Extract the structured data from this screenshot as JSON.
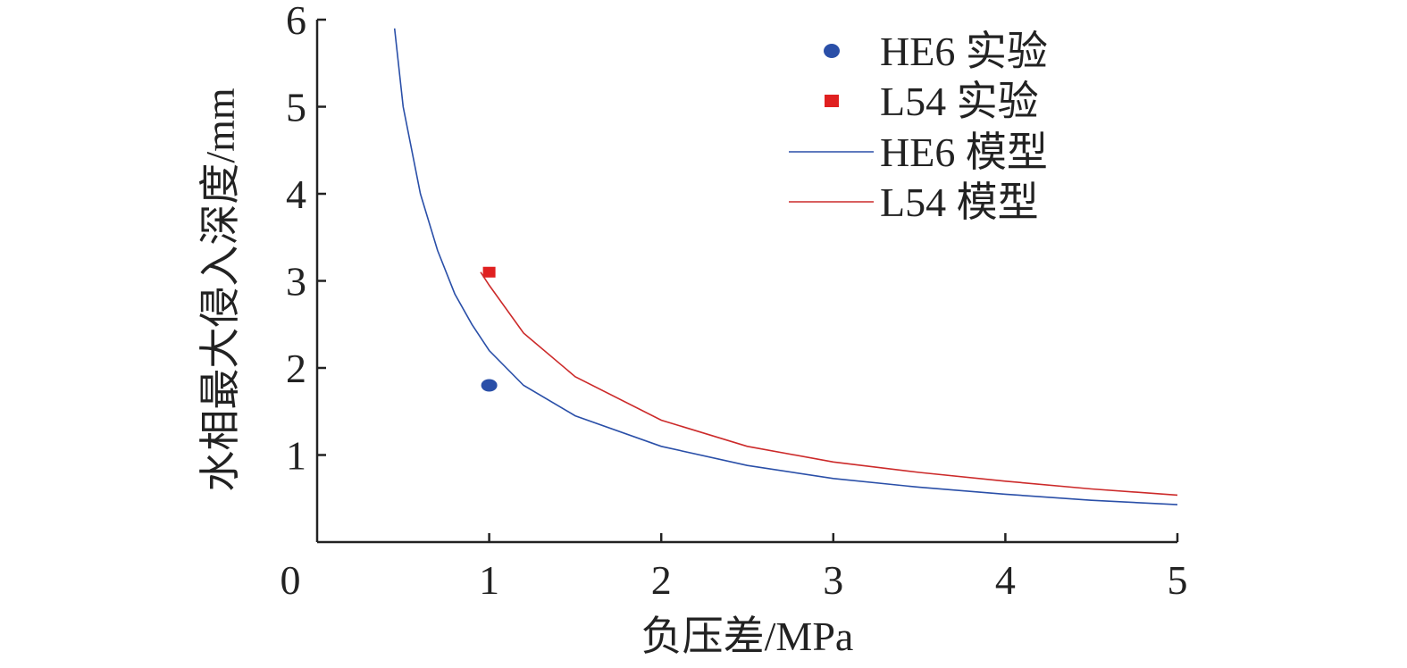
{
  "chart_data": {
    "type": "line",
    "xlabel": "负压差/MPa",
    "ylabel": "水相最大侵入深度/mm",
    "xlim": [
      0,
      5
    ],
    "ylim": [
      0,
      6
    ],
    "x_ticks": [
      "0",
      "1",
      "2",
      "3",
      "4",
      "5"
    ],
    "y_ticks": [
      "1",
      "2",
      "3",
      "4",
      "5",
      "6"
    ],
    "grid": false,
    "legend_position": "top-right",
    "series": [
      {
        "name": "HE6 实验",
        "kind": "scatter",
        "marker": "circle",
        "color": "#2a4fa8",
        "points": [
          [
            1.0,
            1.8
          ]
        ]
      },
      {
        "name": "L54 实验",
        "kind": "scatter",
        "marker": "square",
        "color": "#e02020",
        "points": [
          [
            1.0,
            3.1
          ]
        ]
      },
      {
        "name": "HE6 模型",
        "kind": "line",
        "color": "#2a4fa8",
        "points": [
          [
            0.45,
            5.9
          ],
          [
            0.5,
            5.0
          ],
          [
            0.6,
            4.0
          ],
          [
            0.7,
            3.35
          ],
          [
            0.8,
            2.85
          ],
          [
            0.9,
            2.5
          ],
          [
            1.0,
            2.2
          ],
          [
            1.2,
            1.8
          ],
          [
            1.5,
            1.45
          ],
          [
            2.0,
            1.1
          ],
          [
            2.5,
            0.88
          ],
          [
            3.0,
            0.73
          ],
          [
            3.5,
            0.63
          ],
          [
            4.0,
            0.55
          ],
          [
            4.5,
            0.48
          ],
          [
            5.0,
            0.43
          ]
        ]
      },
      {
        "name": "L54 模型",
        "kind": "line",
        "color": "#cc2a2a",
        "points": [
          [
            0.95,
            3.1
          ],
          [
            1.0,
            2.95
          ],
          [
            1.2,
            2.4
          ],
          [
            1.5,
            1.9
          ],
          [
            2.0,
            1.4
          ],
          [
            2.5,
            1.1
          ],
          [
            3.0,
            0.92
          ],
          [
            3.5,
            0.8
          ],
          [
            4.0,
            0.7
          ],
          [
            4.5,
            0.61
          ],
          [
            5.0,
            0.54
          ]
        ]
      }
    ]
  }
}
